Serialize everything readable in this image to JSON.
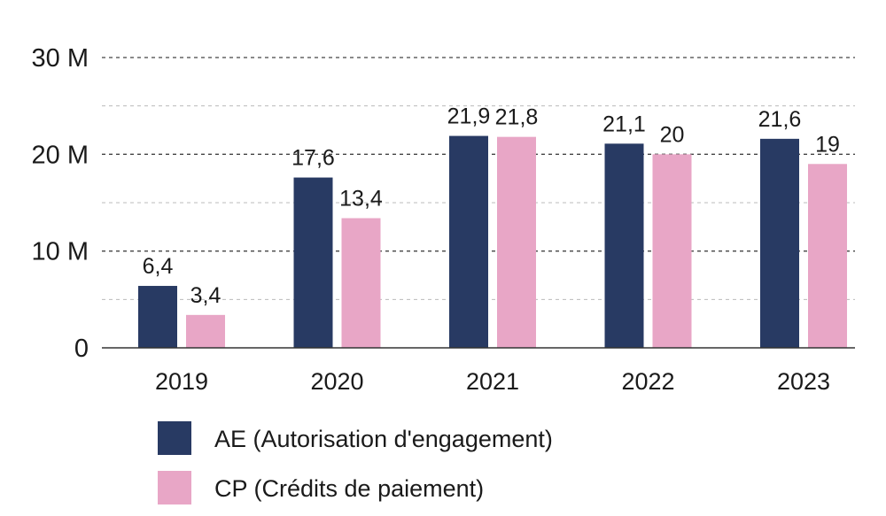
{
  "chart_data": {
    "type": "bar",
    "title": "",
    "xlabel": "",
    "ylabel": "",
    "categories": [
      "2019",
      "2020",
      "2021",
      "2022",
      "2023"
    ],
    "series": [
      {
        "name": "AE (Autorisation d'engagement)",
        "values": [
          6.4,
          17.6,
          21.9,
          21.1,
          21.6
        ],
        "labels": [
          "6,4",
          "17,6",
          "21,9",
          "21,1",
          "21,6"
        ],
        "color": "#283a63"
      },
      {
        "name": "CP (Crédits de paiement)",
        "values": [
          3.4,
          13.4,
          21.8,
          20,
          19
        ],
        "labels": [
          "3,4",
          "13,4",
          "21,8",
          "20",
          "19"
        ],
        "color": "#e8a6c6"
      }
    ],
    "y_unit_multiplier": 1000000,
    "ylim": [
      0,
      30
    ],
    "yticks": [
      0,
      10,
      20,
      30
    ],
    "ytick_labels": [
      "0",
      "10 M",
      "20 M",
      "30 M"
    ],
    "minor_gridlines": [
      5,
      15,
      25
    ],
    "grid": true,
    "legend_position": "bottom"
  }
}
